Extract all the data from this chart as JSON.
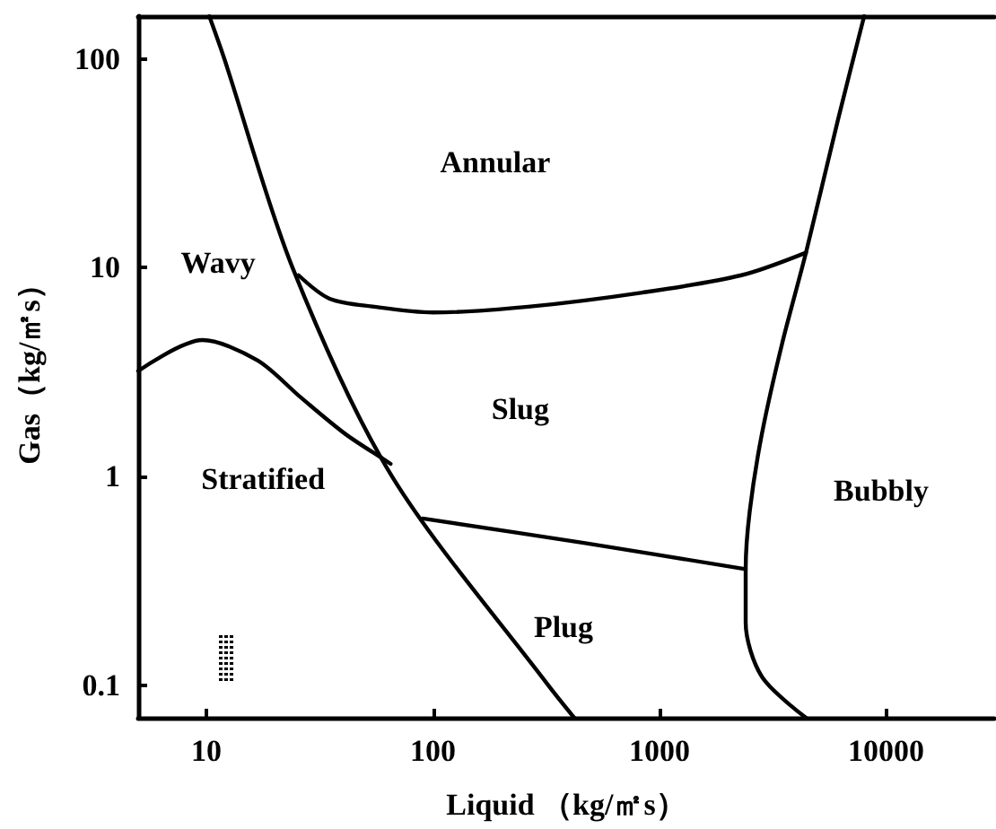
{
  "chart_data": {
    "type": "line",
    "xlabel": "Liquid （kg/㎡s）",
    "ylabel": "Gas（kg/㎡s）",
    "log": "xy",
    "xlim": [
      5,
      30000
    ],
    "ylim": [
      0.07,
      160
    ],
    "xticks": [
      10,
      100,
      1000,
      10000
    ],
    "yticks": [
      0.1,
      1,
      10,
      100
    ],
    "grid": false,
    "marker": "none",
    "line_style": "solid",
    "series": [
      {
        "color": "#000000",
        "x": [
          10.3,
          12,
          24,
          66,
          323,
          420
        ],
        "values": [
          160,
          100,
          10,
          1,
          0.1,
          0.07
        ]
      },
      {
        "color": "#000000",
        "x": [
          25.5,
          35,
          55,
          100,
          263,
          840,
          2300,
          4430
        ],
        "values": [
          9.2,
          7.1,
          6.5,
          6.1,
          6.5,
          7.6,
          9.2,
          11.8
        ]
      },
      {
        "color": "#000000",
        "x": [
          8000,
          6130,
          4430,
          3470,
          2830,
          2500,
          2400,
          2400,
          2830,
          4430
        ],
        "values": [
          160,
          51,
          11.8,
          4.3,
          1.6,
          0.68,
          0.36,
          0.2,
          0.11,
          0.07
        ]
      },
      {
        "color": "#000000",
        "x": [
          90,
          470,
          2400
        ],
        "values": [
          0.63,
          0.48,
          0.36
        ]
      },
      {
        "color": "#000000",
        "x": [
          5,
          9.6,
          16.8,
          26,
          41,
          62,
          65
        ],
        "values": [
          3.2,
          4.5,
          3.6,
          2.4,
          1.6,
          1.19,
          1.15
        ]
      }
    ],
    "annotations": [
      "Annular",
      "Wavy",
      "Slug",
      "Stratified",
      "Bubbly",
      "Plug"
    ]
  }
}
